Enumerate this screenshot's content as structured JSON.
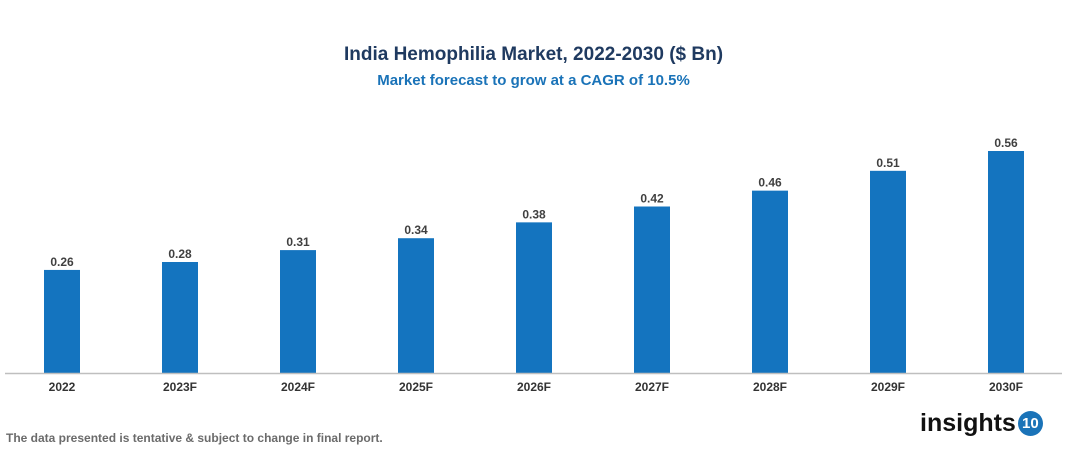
{
  "chart_data": {
    "type": "bar",
    "title": "India Hemophilia Market, 2022-2030 ($ Bn)",
    "subtitle": "Market forecast to grow at a CAGR of 10.5%",
    "categories": [
      "2022",
      "2023F",
      "2024F",
      "2025F",
      "2026F",
      "2027F",
      "2028F",
      "2029F",
      "2030F"
    ],
    "values": [
      0.26,
      0.28,
      0.31,
      0.34,
      0.38,
      0.42,
      0.46,
      0.51,
      0.56
    ],
    "value_labels": [
      "0.26",
      "0.28",
      "0.31",
      "0.34",
      "0.38",
      "0.42",
      "0.46",
      "0.51",
      "0.56"
    ],
    "xlabel": "",
    "ylabel": "",
    "ylim": [
      0,
      0.56
    ],
    "grid": false,
    "bar_color": "#1474bf"
  },
  "footnote": "The data presented is tentative & subject to change in final report.",
  "logo": {
    "text": "insights",
    "badge": "10"
  }
}
